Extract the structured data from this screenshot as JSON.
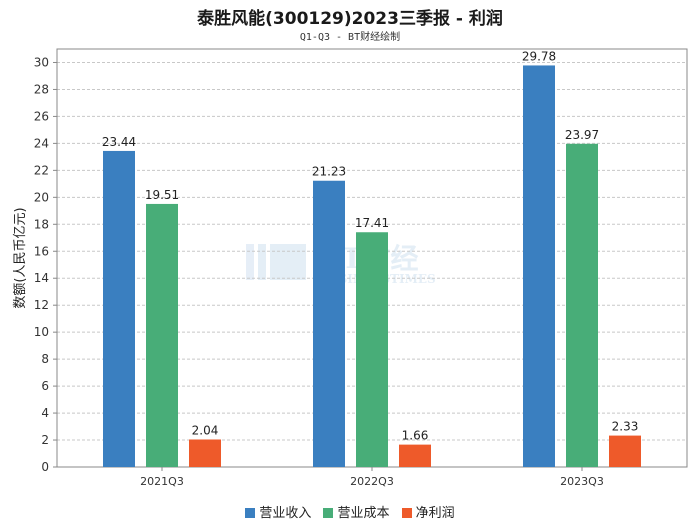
{
  "chart_data": {
    "type": "bar",
    "title": "泰胜风能(300129)2023三季报 - 利润",
    "subtitle": "Q1-Q3 - BT财经绘制",
    "ylabel": "数额(人民币亿元)",
    "xlabel": "",
    "ylim": [
      0,
      31
    ],
    "yticks": [
      0,
      2,
      4,
      6,
      8,
      10,
      12,
      14,
      16,
      18,
      20,
      22,
      24,
      26,
      28,
      30
    ],
    "grid": true,
    "legend_position": "bottom",
    "categories": [
      "2021Q3",
      "2022Q3",
      "2023Q3"
    ],
    "series": [
      {
        "name": "营业收入",
        "color": "#3a7fc0",
        "values": [
          23.44,
          21.23,
          29.78
        ],
        "labels": [
          "23.44",
          "21.23",
          "29.78"
        ]
      },
      {
        "name": "营业成本",
        "color": "#48ad78",
        "values": [
          19.51,
          17.41,
          23.97
        ],
        "labels": [
          "19.51",
          "17.41",
          "23.97"
        ]
      },
      {
        "name": "净利润",
        "color": "#ee5a2a",
        "values": [
          2.04,
          1.66,
          2.33
        ],
        "labels": [
          "2.04",
          "1.66",
          "2.33"
        ]
      }
    ]
  },
  "watermark": {
    "brand": "BT财经",
    "tagline": "BUSINESSTIMES"
  }
}
